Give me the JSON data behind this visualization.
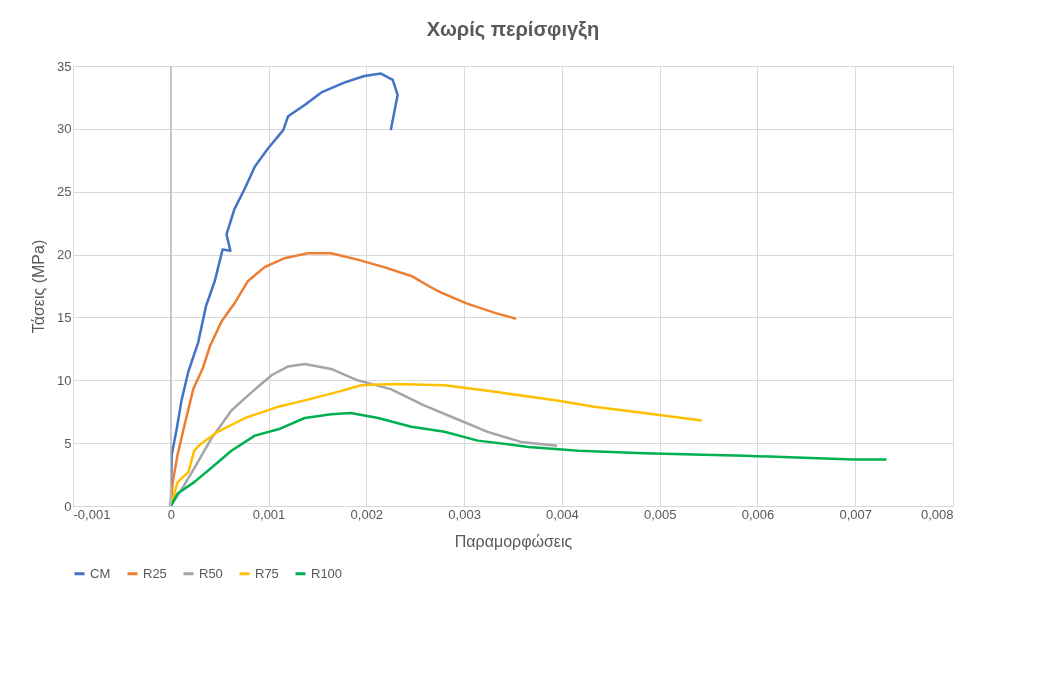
{
  "chart_data": {
    "type": "line",
    "title": "Χωρίς περίσφιγξη",
    "xlabel": "Παραμορφώσεις",
    "ylabel": "Τάσεις (MPa)",
    "xlim": [
      -0.001,
      0.008
    ],
    "xticks": [
      {
        "value": -0.001,
        "label": "-0,001"
      },
      {
        "value": 0,
        "label": "0"
      },
      {
        "value": 0.001,
        "label": "0,001"
      },
      {
        "value": 0.002,
        "label": "0,002"
      },
      {
        "value": 0.003,
        "label": "0,003"
      },
      {
        "value": 0.004,
        "label": "0,004"
      },
      {
        "value": 0.005,
        "label": "0,005"
      },
      {
        "value": 0.006,
        "label": "0,006"
      },
      {
        "value": 0.007,
        "label": "0,007"
      },
      {
        "value": 0.008,
        "label": "0,008"
      }
    ],
    "ylim": [
      0,
      35
    ],
    "yticks": [
      0,
      5,
      10,
      15,
      20,
      25,
      30,
      35
    ],
    "grid": true,
    "legend": "bottom",
    "marker": "none",
    "line_style": "solid",
    "ref_lines": [
      {
        "axis": "x",
        "value": 0,
        "color": "#bfbfbf"
      }
    ],
    "series": [
      {
        "name": "CM",
        "color": "#4472c4",
        "x": [
          0,
          1e-05,
          6e-05,
          0.00011,
          0.00018,
          0.00028,
          0.00036,
          0.00045,
          0.00053,
          0.00061,
          0.00057,
          0.00065,
          0.00076,
          0.00086,
          0.00099,
          0.00115,
          0.0012,
          0.00137,
          0.00154,
          0.00178,
          0.00198,
          0.00215,
          0.00227,
          0.00232,
          0.0023,
          0.00225
        ],
        "values": [
          0,
          4.1,
          6.1,
          8.4,
          10.7,
          13,
          15.9,
          17.9,
          20.4,
          20.3,
          21.6,
          23.6,
          25.3,
          27,
          28.4,
          29.9,
          31,
          31.9,
          32.9,
          33.7,
          34.2,
          34.4,
          33.9,
          32.7,
          31.9,
          29.9
        ]
      },
      {
        "name": "R25",
        "color": "#ed7d31",
        "x": [
          0,
          2e-05,
          7e-05,
          0.00014,
          0.00023,
          0.00033,
          0.0004,
          0.00052,
          0.00065,
          0.00079,
          0.00096,
          0.00116,
          0.0014,
          0.00164,
          0.00191,
          0.00218,
          0.00246,
          0.00266,
          0.00276,
          0.00303,
          0.00334,
          0.00353
        ],
        "values": [
          0,
          1.9,
          4.1,
          6.4,
          9.3,
          11,
          12.7,
          14.7,
          16.1,
          17.9,
          19,
          19.7,
          20.1,
          20.1,
          19.6,
          19,
          18.3,
          17.4,
          17,
          16.1,
          15.3,
          14.9
        ]
      },
      {
        "name": "R50",
        "color": "#a5a5a5",
        "x": [
          0,
          0.00011,
          0.00024,
          0.00041,
          0.00062,
          0.00082,
          0.00103,
          0.0012,
          0.00137,
          0.00164,
          0.00191,
          0.00225,
          0.00259,
          0.0029,
          0.00324,
          0.00358,
          0.00395
        ],
        "values": [
          0,
          1.3,
          3,
          5.3,
          7.6,
          9,
          10.4,
          11.1,
          11.3,
          10.9,
          10,
          9.3,
          8,
          7,
          5.9,
          5.1,
          4.8
        ]
      },
      {
        "name": "R75",
        "color": "#ffc000",
        "x": [
          0,
          7e-05,
          0.00018,
          0.00024,
          0.0003,
          0.00048,
          0.00076,
          0.0011,
          0.00137,
          0.00167,
          0.00195,
          0.00229,
          0.0028,
          0.0033,
          0.00395,
          0.00433,
          0.00484,
          0.00543
        ],
        "values": [
          0,
          1.9,
          2.7,
          4.4,
          4.9,
          5.9,
          7,
          7.9,
          8.4,
          9,
          9.6,
          9.7,
          9.6,
          9.1,
          8.4,
          7.9,
          7.4,
          6.8
        ]
      },
      {
        "name": "R100",
        "color": "#00b050",
        "x": [
          0,
          7e-05,
          0.00024,
          0.00041,
          0.00062,
          0.00086,
          0.0011,
          0.00137,
          0.00164,
          0.00184,
          0.00212,
          0.00246,
          0.0028,
          0.00314,
          0.00366,
          0.00417,
          0.00484,
          0.00535,
          0.00586,
          0.00698,
          0.00732
        ],
        "values": [
          0,
          1,
          1.9,
          3,
          4.4,
          5.6,
          6.1,
          7,
          7.3,
          7.4,
          7,
          6.3,
          5.9,
          5.2,
          4.7,
          4.4,
          4.2,
          4.1,
          4,
          3.7,
          3.7
        ]
      }
    ]
  }
}
